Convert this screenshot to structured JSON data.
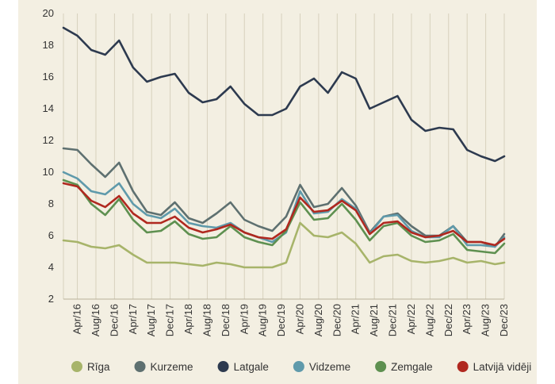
{
  "chart_data": {
    "type": "line",
    "title": "",
    "xlabel": "",
    "ylabel": "",
    "ylim": [
      2,
      20
    ],
    "yticks": [
      2,
      4,
      6,
      8,
      10,
      12,
      14,
      16,
      18,
      20
    ],
    "grid": "vertical",
    "legend_position": "bottom",
    "x_start": "Jan/16",
    "x_end": "Dec/23",
    "x": [
      "Jan/16",
      "Apr/16",
      "Jul/16",
      "Oct/16",
      "Jan/17",
      "Apr/17",
      "Jul/17",
      "Oct/17",
      "Jan/18",
      "Apr/18",
      "Jul/18",
      "Oct/18",
      "Jan/19",
      "Apr/19",
      "Jul/19",
      "Oct/19",
      "Jan/20",
      "Apr/20",
      "Jul/20",
      "Oct/20",
      "Jan/21",
      "Apr/21",
      "Jul/21",
      "Oct/21",
      "Jan/22",
      "Apr/22",
      "Jul/22",
      "Oct/22",
      "Jan/23",
      "Apr/23",
      "Jul/23",
      "Oct/23",
      "Dec/23"
    ],
    "xtick_labels": [
      "Apr/16",
      "Aug/16",
      "Dec/16",
      "Apr/17",
      "Aug/17",
      "Dec/17",
      "Apr/18",
      "Aug/18",
      "Dec/18",
      "Apr/19",
      "Aug/19",
      "Dec/19",
      "Apr/20",
      "Aug/20",
      "Dec/20",
      "Apr/21",
      "Aug/21",
      "Dec/21",
      "Apr/22",
      "Aug/22",
      "Dec/22",
      "Apr/23",
      "Aug/23",
      "Dec/23"
    ],
    "series": [
      {
        "name": "Rīga",
        "color": "#a7b46a",
        "values": [
          5.7,
          5.6,
          5.3,
          5.2,
          5.4,
          4.8,
          4.3,
          4.3,
          4.3,
          4.2,
          4.1,
          4.3,
          4.2,
          4.0,
          4.0,
          4.0,
          4.3,
          6.8,
          6.0,
          5.9,
          6.2,
          5.5,
          4.3,
          4.7,
          4.8,
          4.4,
          4.3,
          4.4,
          4.6,
          4.3,
          4.4,
          4.2,
          4.3
        ]
      },
      {
        "name": "Kurzeme",
        "color": "#5e7070",
        "values": [
          11.5,
          11.4,
          10.5,
          9.7,
          10.6,
          8.8,
          7.5,
          7.3,
          8.1,
          7.1,
          6.8,
          7.4,
          8.1,
          7.0,
          6.6,
          6.3,
          7.2,
          9.2,
          7.8,
          8.0,
          9.0,
          7.9,
          6.2,
          7.2,
          7.4,
          6.6,
          6.0,
          6.0,
          6.6,
          5.6,
          5.6,
          5.3,
          6.1
        ]
      },
      {
        "name": "Latgale",
        "color": "#2d3a4f",
        "values": [
          19.1,
          18.6,
          17.7,
          17.4,
          18.3,
          16.6,
          15.7,
          16.0,
          16.2,
          15.0,
          14.4,
          14.6,
          15.4,
          14.3,
          13.6,
          13.6,
          14.0,
          15.4,
          15.9,
          15.0,
          16.3,
          15.9,
          14.0,
          14.4,
          14.8,
          13.3,
          12.6,
          12.8,
          12.7,
          11.4,
          11.0,
          10.7,
          11.0
        ]
      },
      {
        "name": "Vidzeme",
        "color": "#5f9aab",
        "values": [
          10.0,
          9.6,
          8.8,
          8.6,
          9.3,
          8.0,
          7.3,
          7.1,
          7.7,
          6.8,
          6.6,
          6.5,
          6.8,
          6.2,
          5.9,
          5.6,
          6.2,
          8.8,
          7.4,
          7.5,
          8.3,
          7.7,
          6.1,
          7.2,
          7.3,
          6.3,
          5.9,
          5.9,
          6.6,
          5.4,
          5.4,
          5.3,
          5.9
        ]
      },
      {
        "name": "Zemgale",
        "color": "#5e9050",
        "values": [
          9.5,
          9.2,
          8.0,
          7.3,
          8.3,
          7.0,
          6.2,
          6.3,
          6.9,
          6.1,
          5.8,
          5.9,
          6.6,
          5.9,
          5.6,
          5.4,
          6.3,
          8.1,
          7.0,
          7.1,
          8.0,
          7.0,
          5.7,
          6.6,
          6.8,
          6.0,
          5.6,
          5.7,
          6.1,
          5.1,
          5.0,
          4.9,
          5.5
        ]
      },
      {
        "name": "Latvijā vidēji",
        "color": "#b0281f",
        "values": [
          9.3,
          9.1,
          8.2,
          7.8,
          8.5,
          7.4,
          6.8,
          6.8,
          7.2,
          6.5,
          6.2,
          6.4,
          6.7,
          6.2,
          5.9,
          5.8,
          6.4,
          8.4,
          7.5,
          7.6,
          8.2,
          7.6,
          6.1,
          6.8,
          6.9,
          6.2,
          5.9,
          6.0,
          6.3,
          5.6,
          5.6,
          5.4,
          5.8
        ]
      }
    ]
  }
}
